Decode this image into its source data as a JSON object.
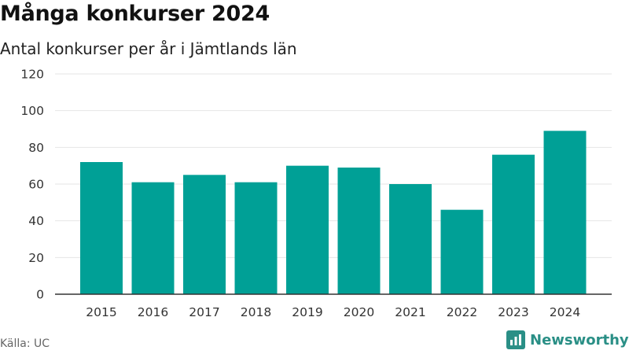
{
  "title": "Många konkurser 2024",
  "subtitle": "Antal konkurser per år i Jämtlands län",
  "source": "Källa: UC",
  "brand": {
    "name": "Newsworthy",
    "color": "#2a8f86",
    "icon": "bar-chart-icon"
  },
  "colors": {
    "bar": "#00a096",
    "grid": "#e6e6e6",
    "axis": "#333333"
  },
  "chart_data": {
    "type": "bar",
    "categories": [
      "2015",
      "2016",
      "2017",
      "2018",
      "2019",
      "2020",
      "2021",
      "2022",
      "2023",
      "2024"
    ],
    "values": [
      72,
      61,
      65,
      61,
      70,
      69,
      60,
      46,
      76,
      89
    ],
    "title": "Många konkurser 2024",
    "subtitle": "Antal konkurser per år i Jämtlands län",
    "xlabel": "",
    "ylabel": "",
    "ylim": [
      0,
      120
    ],
    "yticks": [
      0,
      20,
      40,
      60,
      80,
      100,
      120
    ],
    "grid": true,
    "legend": "none"
  }
}
